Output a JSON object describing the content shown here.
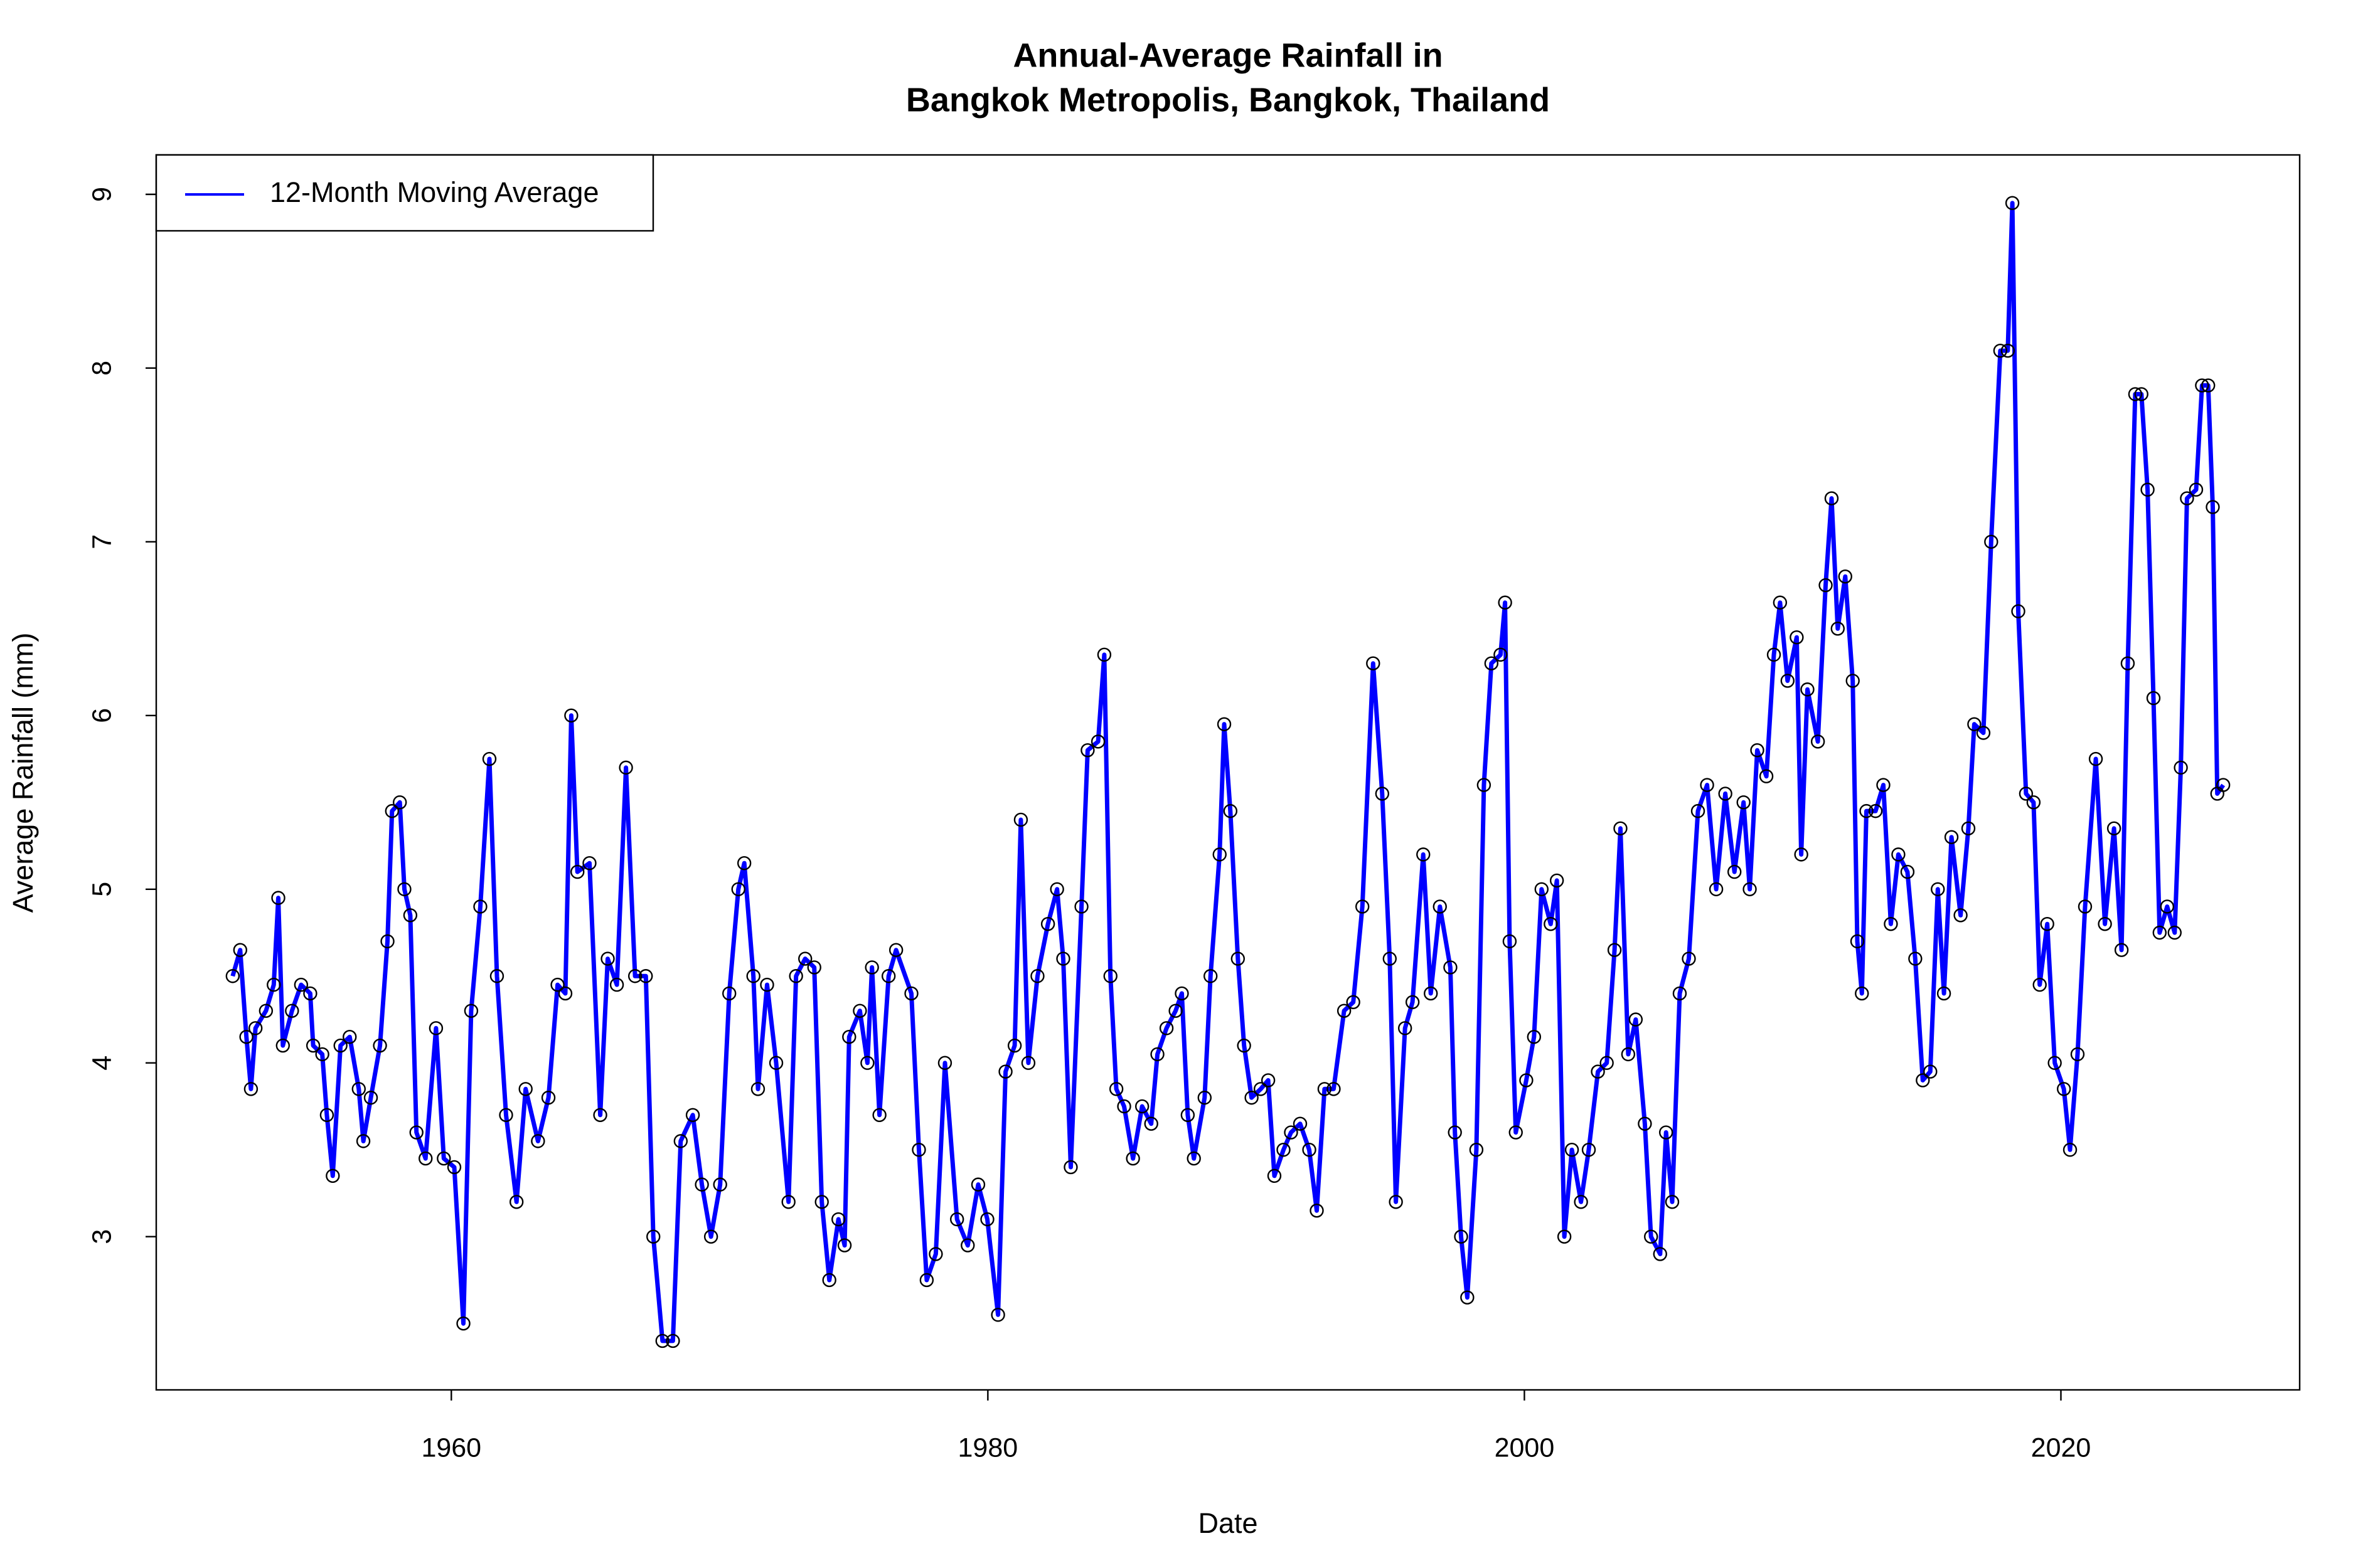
{
  "chart_data": {
    "type": "line",
    "title": [
      "Annual-Average Rainfall in",
      "Bangkok Metropolis, Bangkok, Thailand"
    ],
    "x_label": "Date",
    "y_label": "Average Rainfall (mm)",
    "legend": "top-left",
    "grid": false,
    "markers": true,
    "xlim": [
      1949.0,
      2028.9
    ],
    "xticks": [
      1960,
      1980,
      2000,
      2020
    ],
    "ylim": [
      2.118,
      9.227
    ],
    "yticks": [
      3,
      4,
      5,
      6,
      7,
      8,
      9
    ],
    "x": [
      1951.85,
      1952.13,
      1952.36,
      1952.53,
      1952.7,
      1953.09,
      1953.38,
      1953.55,
      1953.72,
      1954.06,
      1954.4,
      1954.74,
      1954.85,
      1955.19,
      1955.36,
      1955.58,
      1955.87,
      1956.21,
      1956.55,
      1956.72,
      1957.0,
      1957.34,
      1957.62,
      1957.79,
      1958.08,
      1958.25,
      1958.47,
      1958.7,
      1959.04,
      1959.43,
      1959.72,
      1960.11,
      1960.45,
      1960.74,
      1961.08,
      1961.42,
      1961.7,
      1962.04,
      1962.43,
      1962.77,
      1963.23,
      1963.62,
      1963.96,
      1964.25,
      1964.47,
      1964.7,
      1965.15,
      1965.55,
      1965.83,
      1966.17,
      1966.51,
      1966.85,
      1967.25,
      1967.53,
      1967.87,
      1968.26,
      1968.55,
      1969.0,
      1969.34,
      1969.68,
      1970.02,
      1970.36,
      1970.7,
      1970.92,
      1971.26,
      1971.43,
      1971.77,
      1972.11,
      1972.57,
      1972.85,
      1973.19,
      1973.53,
      1973.81,
      1974.09,
      1974.43,
      1974.66,
      1974.83,
      1975.23,
      1975.51,
      1975.68,
      1975.96,
      1976.3,
      1976.58,
      1977.15,
      1977.43,
      1977.72,
      1978.06,
      1978.4,
      1978.85,
      1979.25,
      1979.64,
      1979.98,
      1980.38,
      1980.66,
      1981.0,
      1981.23,
      1981.51,
      1981.85,
      1982.24,
      1982.58,
      1982.81,
      1983.09,
      1983.49,
      1983.72,
      1984.11,
      1984.34,
      1984.57,
      1984.79,
      1985.08,
      1985.41,
      1985.75,
      1986.09,
      1986.32,
      1986.66,
      1987.0,
      1987.23,
      1987.45,
      1987.68,
      1988.08,
      1988.3,
      1988.64,
      1988.81,
      1989.04,
      1989.32,
      1989.55,
      1989.83,
      1990.17,
      1990.45,
      1990.68,
      1991.02,
      1991.3,
      1991.64,
      1991.98,
      1992.26,
      1992.55,
      1992.89,
      1993.28,
      1993.62,
      1993.96,
      1994.36,
      1994.7,
      1994.98,
      1995.21,
      1995.55,
      1995.83,
      1996.23,
      1996.51,
      1996.85,
      1997.24,
      1997.41,
      1997.64,
      1997.87,
      1998.21,
      1998.49,
      1998.77,
      1999.11,
      1999.28,
      1999.45,
      1999.68,
      2000.07,
      2000.36,
      2000.64,
      2000.98,
      2001.21,
      2001.49,
      2001.77,
      2002.11,
      2002.4,
      2002.74,
      2003.07,
      2003.36,
      2003.58,
      2003.87,
      2004.15,
      2004.49,
      2004.72,
      2005.06,
      2005.28,
      2005.51,
      2005.79,
      2006.13,
      2006.47,
      2006.81,
      2007.15,
      2007.49,
      2007.83,
      2008.17,
      2008.4,
      2008.68,
      2009.02,
      2009.3,
      2009.53,
      2009.81,
      2010.15,
      2010.32,
      2010.55,
      2010.94,
      2011.23,
      2011.45,
      2011.68,
      2011.96,
      2012.24,
      2012.41,
      2012.58,
      2012.75,
      2013.09,
      2013.38,
      2013.66,
      2013.94,
      2014.28,
      2014.57,
      2014.85,
      2015.13,
      2015.41,
      2015.64,
      2015.92,
      2016.26,
      2016.55,
      2016.77,
      2017.11,
      2017.4,
      2017.74,
      2018.02,
      2018.19,
      2018.41,
      2018.7,
      2018.98,
      2019.21,
      2019.49,
      2019.77,
      2020.11,
      2020.34,
      2020.62,
      2020.9,
      2021.3,
      2021.64,
      2021.98,
      2022.26,
      2022.49,
      2022.77,
      2023.0,
      2023.23,
      2023.45,
      2023.68,
      2023.96,
      2024.24,
      2024.47,
      2024.7,
      2025.04,
      2025.26,
      2025.49,
      2025.66,
      2025.83,
      2026.05
    ],
    "series": [
      {
        "name": "12-Month Moving Average",
        "color": "#0000ff",
        "values": [
          4.5,
          4.65,
          4.15,
          3.85,
          4.2,
          4.3,
          4.45,
          4.95,
          4.1,
          4.3,
          4.45,
          4.4,
          4.1,
          4.05,
          3.7,
          3.35,
          4.1,
          4.15,
          3.85,
          3.55,
          3.8,
          4.1,
          4.7,
          5.45,
          5.5,
          5.0,
          4.85,
          3.6,
          3.45,
          4.2,
          3.45,
          3.4,
          2.5,
          4.3,
          4.9,
          5.75,
          4.5,
          3.7,
          3.2,
          3.85,
          3.55,
          3.8,
          4.45,
          4.4,
          6.0,
          5.1,
          5.15,
          3.7,
          4.6,
          4.45,
          5.7,
          4.5,
          4.5,
          3.0,
          2.4,
          2.4,
          3.55,
          3.7,
          3.3,
          3.0,
          3.3,
          4.4,
          5.0,
          5.15,
          4.5,
          3.85,
          4.45,
          4.0,
          3.2,
          4.5,
          4.6,
          4.55,
          3.2,
          2.75,
          3.1,
          2.95,
          4.15,
          4.3,
          4.0,
          4.55,
          3.7,
          4.5,
          4.65,
          4.4,
          3.5,
          2.75,
          2.9,
          4.0,
          3.1,
          2.95,
          3.3,
          3.1,
          2.55,
          3.95,
          4.1,
          5.4,
          4.0,
          4.5,
          4.8,
          5.0,
          4.6,
          3.4,
          4.9,
          5.8,
          5.85,
          6.35,
          4.5,
          3.85,
          3.75,
          3.45,
          3.75,
          3.65,
          4.05,
          4.2,
          4.3,
          4.4,
          3.7,
          3.45,
          3.8,
          4.5,
          5.2,
          5.95,
          5.45,
          4.6,
          4.1,
          3.8,
          3.85,
          3.9,
          3.35,
          3.5,
          3.6,
          3.65,
          3.5,
          3.15,
          3.85,
          3.85,
          4.3,
          4.35,
          4.9,
          6.3,
          5.55,
          4.6,
          3.2,
          4.2,
          4.35,
          5.2,
          4.4,
          4.9,
          4.55,
          3.6,
          3.0,
          2.65,
          3.5,
          5.6,
          6.3,
          6.35,
          6.65,
          4.7,
          3.6,
          3.9,
          4.15,
          5.0,
          4.8,
          5.05,
          3.0,
          3.5,
          3.2,
          3.5,
          3.95,
          4.0,
          4.65,
          5.35,
          4.05,
          4.25,
          3.65,
          3.0,
          2.9,
          3.6,
          3.2,
          4.4,
          4.6,
          5.45,
          5.6,
          5.0,
          5.55,
          5.1,
          5.5,
          5.0,
          5.8,
          5.65,
          6.35,
          6.65,
          6.2,
          6.45,
          5.2,
          6.15,
          5.85,
          6.75,
          7.25,
          6.5,
          6.8,
          6.2,
          4.7,
          4.4,
          5.45,
          5.45,
          5.6,
          4.8,
          5.2,
          5.1,
          4.6,
          3.9,
          3.95,
          5.0,
          4.4,
          5.3,
          4.85,
          5.35,
          5.95,
          5.9,
          7.0,
          8.1,
          8.1,
          8.95,
          6.6,
          5.55,
          5.5,
          4.45,
          4.8,
          4.0,
          3.85,
          3.5,
          4.05,
          4.9,
          5.75,
          4.8,
          5.35,
          4.65,
          6.3,
          7.85,
          7.85,
          7.3,
          6.1,
          4.75,
          4.9,
          4.75,
          5.7,
          7.25,
          7.3,
          7.9,
          7.9,
          7.2,
          5.55,
          5.6
        ]
      }
    ]
  }
}
